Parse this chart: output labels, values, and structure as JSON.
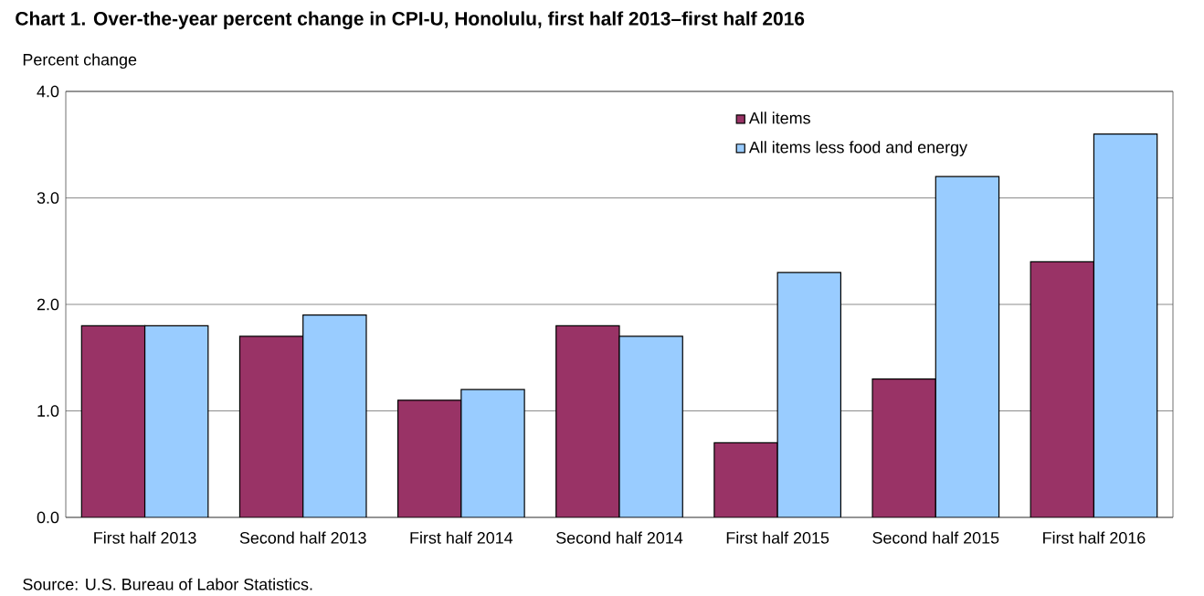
{
  "chart_data": {
    "type": "bar",
    "title": "Chart 1. Over-the-year percent change in CPI-U, Honolulu, first  half 2013–first  half 2016",
    "ylabel": "Percent change",
    "annotations": [
      "Source: U.S. Bureau of Labor Statistics."
    ],
    "categories": [
      "First half 2013",
      "Second half 2013",
      "First half 2014",
      "Second half 2014",
      "First half 2015",
      "Second half 2015",
      "First half 2016"
    ],
    "series": [
      {
        "name": "All items",
        "color": "#993366",
        "values": [
          1.8,
          1.7,
          1.1,
          1.8,
          0.7,
          1.3,
          2.4
        ]
      },
      {
        "name": "All items less food and energy",
        "color": "#99ccff",
        "values": [
          1.8,
          1.9,
          1.2,
          1.7,
          2.3,
          3.2,
          3.6
        ]
      }
    ],
    "ylim": [
      0,
      4
    ],
    "yticks": [
      {
        "value": 0,
        "label": "0.0"
      },
      {
        "value": 1,
        "label": "1.0"
      },
      {
        "value": 2,
        "label": "2.0"
      },
      {
        "value": 3,
        "label": "3.0"
      },
      {
        "value": 4,
        "label": "4.0"
      }
    ],
    "grid": "y",
    "legend": "top right"
  }
}
